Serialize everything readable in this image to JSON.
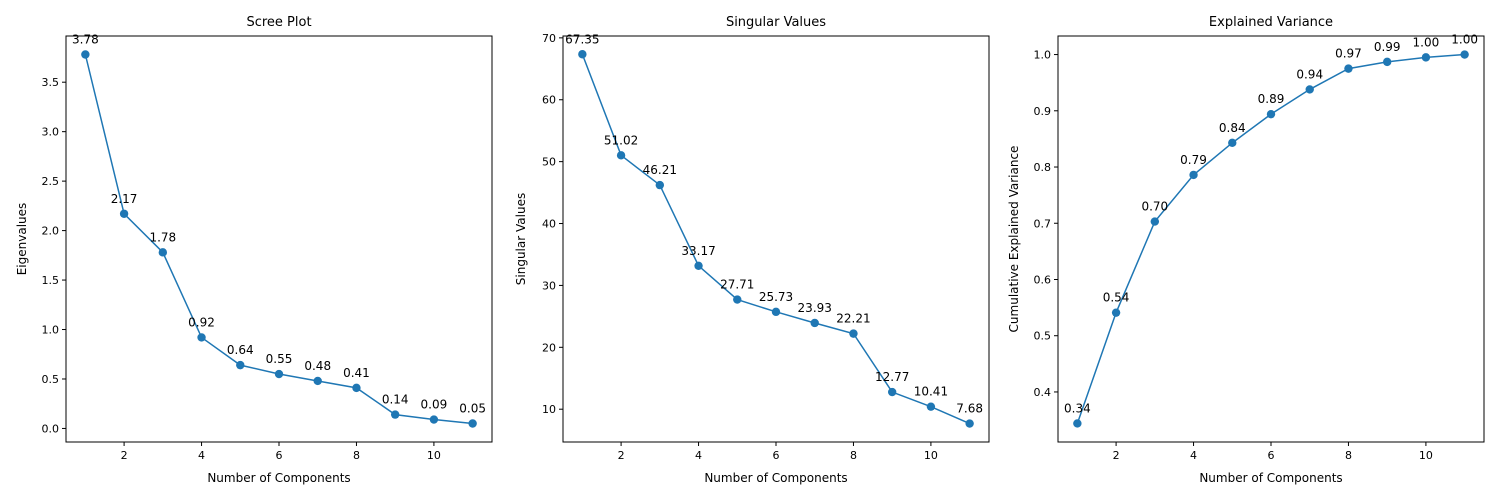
{
  "colors": {
    "line": "#1f77b4",
    "axes": "#000000",
    "background": "#ffffff"
  },
  "chart_data": [
    {
      "type": "line",
      "title": "Scree Plot",
      "xlabel": "Number of Components",
      "ylabel": "Eigenvalues",
      "x": [
        1,
        2,
        3,
        4,
        5,
        6,
        7,
        8,
        9,
        10,
        11
      ],
      "values": [
        3.78,
        2.17,
        1.78,
        0.92,
        0.64,
        0.55,
        0.48,
        0.41,
        0.14,
        0.09,
        0.05
      ],
      "data_labels": [
        "3.78",
        "2.17",
        "1.78",
        "0.92",
        "0.64",
        "0.55",
        "0.48",
        "0.41",
        "0.14",
        "0.09",
        "0.05"
      ],
      "xlim": [
        0.5,
        11.5
      ],
      "ylim": [
        -0.137,
        3.967
      ],
      "xticks": [
        2,
        4,
        6,
        8,
        10
      ],
      "xtick_labels": [
        "2",
        "4",
        "6",
        "8",
        "10"
      ],
      "yticks": [
        0.0,
        0.5,
        1.0,
        1.5,
        2.0,
        2.5,
        3.0,
        3.5
      ],
      "ytick_labels": [
        "0.0",
        "0.5",
        "1.0",
        "1.5",
        "2.0",
        "2.5",
        "3.0",
        "3.5"
      ],
      "grid": false,
      "marker": "circle"
    },
    {
      "type": "line",
      "title": "Singular Values",
      "xlabel": "Number of Components",
      "ylabel": "Singular Values",
      "x": [
        1,
        2,
        3,
        4,
        5,
        6,
        7,
        8,
        9,
        10,
        11
      ],
      "values": [
        67.35,
        51.02,
        46.21,
        33.17,
        27.71,
        25.73,
        23.93,
        22.21,
        12.77,
        10.41,
        7.68
      ],
      "data_labels": [
        "67.35",
        "51.02",
        "46.21",
        "33.17",
        "27.71",
        "25.73",
        "23.93",
        "22.21",
        "12.77",
        "10.41",
        "7.68"
      ],
      "xlim": [
        0.5,
        11.5
      ],
      "ylim": [
        4.7,
        70.3
      ],
      "xticks": [
        2,
        4,
        6,
        8,
        10
      ],
      "xtick_labels": [
        "2",
        "4",
        "6",
        "8",
        "10"
      ],
      "yticks": [
        10,
        20,
        30,
        40,
        50,
        60,
        70
      ],
      "ytick_labels": [
        "10",
        "20",
        "30",
        "40",
        "50",
        "60",
        "70"
      ],
      "grid": false,
      "marker": "circle"
    },
    {
      "type": "line",
      "title": "Explained Variance",
      "xlabel": "Number of Components",
      "ylabel": "Cumulative Explained Variance",
      "x": [
        1,
        2,
        3,
        4,
        5,
        6,
        7,
        8,
        9,
        10,
        11
      ],
      "values": [
        0.344,
        0.541,
        0.703,
        0.786,
        0.843,
        0.894,
        0.938,
        0.975,
        0.987,
        0.995,
        1.0
      ],
      "data_labels": [
        "0.34",
        "0.54",
        "0.70",
        "0.79",
        "0.84",
        "0.89",
        "0.94",
        "0.97",
        "0.99",
        "1.00",
        "1.00"
      ],
      "xlim": [
        0.5,
        11.5
      ],
      "ylim": [
        0.311,
        1.033
      ],
      "xticks": [
        2,
        4,
        6,
        8,
        10
      ],
      "xtick_labels": [
        "2",
        "4",
        "6",
        "8",
        "10"
      ],
      "yticks": [
        0.4,
        0.5,
        0.6,
        0.7,
        0.8,
        0.9,
        1.0
      ],
      "ytick_labels": [
        "0.4",
        "0.5",
        "0.6",
        "0.7",
        "0.8",
        "0.9",
        "1.0"
      ],
      "grid": false,
      "marker": "circle"
    }
  ]
}
